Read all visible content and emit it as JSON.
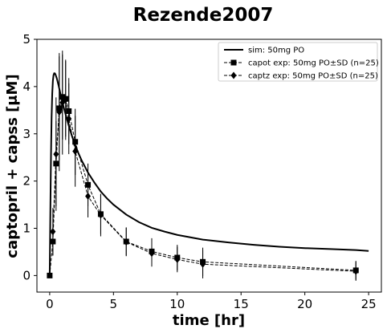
{
  "chart_data": {
    "type": "line",
    "title": "Rezende2007",
    "xlabel": "time [hr]",
    "ylabel": "captopril + capss [μM]",
    "xlim": [
      -1,
      26
    ],
    "ylim": [
      -0.35,
      5
    ],
    "xticks": [
      0,
      5,
      10,
      15,
      20,
      25
    ],
    "yticks": [
      0,
      1,
      2,
      3,
      4,
      5
    ],
    "legend_position": "upper right",
    "series": [
      {
        "name": "sim: 50mg PO",
        "style": "solid",
        "marker": "none",
        "color": "#000000",
        "x": [
          0,
          0.05,
          0.1,
          0.15,
          0.2,
          0.25,
          0.3,
          0.35,
          0.4,
          0.45,
          0.5,
          0.55,
          0.6,
          0.7,
          0.8,
          0.9,
          1.0,
          1.1,
          1.2,
          1.3,
          1.5,
          1.75,
          2.0,
          2.25,
          2.5,
          3.0,
          3.5,
          4.0,
          4.5,
          5.0,
          6.0,
          7.0,
          8.0,
          9.0,
          10.0,
          12.0,
          14.0,
          16.0,
          18.0,
          20.0,
          22.0,
          24.0,
          25.0
        ],
        "y": [
          0,
          1.3,
          2.5,
          3.35,
          3.85,
          4.12,
          4.24,
          4.28,
          4.28,
          4.26,
          4.22,
          4.18,
          4.13,
          4.02,
          3.9,
          3.78,
          3.67,
          3.56,
          3.46,
          3.36,
          3.17,
          2.95,
          2.76,
          2.59,
          2.44,
          2.18,
          1.97,
          1.78,
          1.63,
          1.5,
          1.29,
          1.13,
          1.01,
          0.93,
          0.86,
          0.76,
          0.7,
          0.65,
          0.61,
          0.58,
          0.56,
          0.54,
          0.52
        ]
      },
      {
        "name": "capot exp: 50mg PO±SD (n=25)",
        "style": "dashed",
        "marker": "square",
        "color": "#000000",
        "x": [
          0,
          0.25,
          0.5,
          0.75,
          1.0,
          1.25,
          1.5,
          2.0,
          3.0,
          4.0,
          6.0,
          8.0,
          10.0,
          12.0,
          24.0
        ],
        "y": [
          0,
          0.72,
          2.37,
          3.54,
          3.78,
          3.74,
          3.48,
          2.83,
          1.92,
          1.3,
          0.72,
          0.51,
          0.38,
          0.29,
          0.11
        ],
        "sd": [
          0.05,
          0.3,
          0.9,
          1.1,
          0.9,
          0.8,
          0.7,
          0.7,
          0.45,
          0.42,
          0.3,
          0.28,
          0.27,
          0.3,
          0.2
        ]
      },
      {
        "name": "captz exp: 50mg PO±SD (n=25)",
        "style": "dashed",
        "marker": "diamond",
        "color": "#000000",
        "x": [
          0.25,
          0.5,
          0.75,
          1.0,
          1.25,
          1.5,
          2.0,
          3.0,
          4.0,
          6.0,
          8.0,
          10.0,
          12.0,
          24.0
        ],
        "y": [
          0.93,
          2.57,
          3.46,
          3.66,
          3.72,
          3.32,
          2.63,
          1.68,
          1.28,
          0.71,
          0.47,
          0.34,
          0.24,
          0.09
        ],
        "sd": [
          0.5,
          1.2,
          1.25,
          1.1,
          0.85,
          0.75,
          0.75,
          0.45,
          0.45,
          0.3,
          0.28,
          0.27,
          0.3,
          0.2
        ]
      }
    ]
  }
}
